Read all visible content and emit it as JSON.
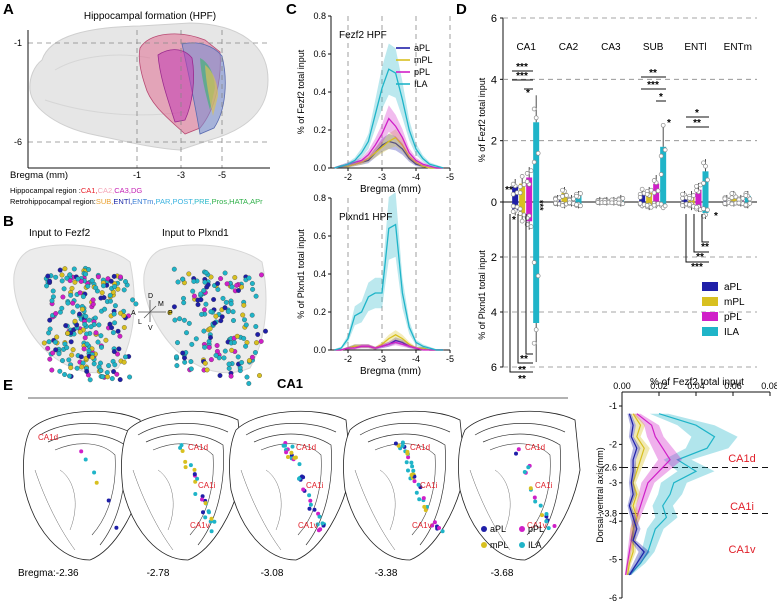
{
  "panels": {
    "A": {
      "letter": "A",
      "title": "Hippocampal formation (HPF)",
      "y_ticks": [
        "-1",
        "-6"
      ],
      "x_ticks": [
        "-1",
        "-3",
        "-5"
      ],
      "x_label": "Bregma (mm)",
      "hippocampal_label": "Hippocampal region :",
      "hippocampal_regions": [
        {
          "name": "CA1",
          "color": "#e8202a"
        },
        {
          "name": "CA2",
          "color": "#f4a6b8"
        },
        {
          "name": "CA3",
          "color": "#c41fb4"
        },
        {
          "name": "DG",
          "color": "#c41fb4"
        }
      ],
      "retro_label": "Retrohippocampal region:",
      "retro_regions": [
        {
          "name": "SUB",
          "color": "#e8a030"
        },
        {
          "name": "ENTl",
          "color": "#1d2aa8"
        },
        {
          "name": "ENTm",
          "color": "#3b7fd6"
        },
        {
          "name": "PAR",
          "color": "#3bb3e0"
        },
        {
          "name": "POST",
          "color": "#3bb3e0"
        },
        {
          "name": "PRE",
          "color": "#2ab8c8"
        },
        {
          "name": "Pros",
          "color": "#30b04a"
        },
        {
          "name": "HATA",
          "color": "#30b04a"
        },
        {
          "name": "APr",
          "color": "#30b04a"
        }
      ]
    },
    "B": {
      "letter": "B",
      "left_title": "Input to Fezf2",
      "right_title": "Input to Plxnd1",
      "orientation": {
        "d": "D",
        "v": "V",
        "a": "A",
        "p": "P",
        "m": "M",
        "l": "L"
      }
    },
    "C": {
      "letter": "C",
      "top_title": "Fezf2 HPF",
      "bottom_title": "Plxnd1 HPF",
      "top_ylabel": "% of Fezf2 total input",
      "bottom_ylabel": "% of Plxnd1 total input",
      "xlabel": "Bregma (mm)"
    },
    "D": {
      "letter": "D",
      "ylabel_top": "% of Fezf2 total input",
      "ylabel_bottom": "% of Plxnd1 total input",
      "stars": {
        "s3": "***",
        "s2": "**",
        "s1": "*"
      }
    },
    "E": {
      "letter": "E",
      "title": "CA1",
      "bregma_label": "Bregma:-2.36",
      "sections": [
        "-2.78",
        "-3.08",
        "-3.38",
        "-3.68"
      ],
      "region_labels": {
        "d": "CA1d",
        "i": "CA1i",
        "v": "CA1v"
      },
      "legend": {
        "apl": "aPL",
        "ppl": "pPL",
        "mpl": "mPL",
        "ila": "ILA"
      },
      "profile_xlabel": "% of Fezf2 total input",
      "profile_ylabel": "Dorsal-ventral axis(mm)",
      "profile_zones": [
        "CA1d",
        "CA1i",
        "CA1v"
      ]
    }
  },
  "colors": {
    "aPL": "#1f1fa8",
    "mPL": "#d8c020",
    "pPL": "#d01fc8",
    "ILA": "#1fb4c8"
  },
  "chart_data": [
    {
      "type": "line",
      "title": "Fezf2 HPF",
      "xlabel": "Bregma (mm)",
      "ylabel": "% of Fezf2 total input",
      "xlim": [
        -1.5,
        -5
      ],
      "ylim": [
        0,
        0.8
      ],
      "x_ticks": [
        -2,
        -3,
        -4,
        -5
      ],
      "y_ticks": [
        0,
        0.2,
        0.4,
        0.6,
        0.8
      ],
      "y_tick_labels": [
        "0.0",
        "0.2",
        "0.4",
        "0.6",
        "0.8"
      ],
      "x": [
        -1.6,
        -1.8,
        -2.0,
        -2.2,
        -2.4,
        -2.6,
        -2.8,
        -3.0,
        -3.2,
        -3.4,
        -3.6,
        -3.8,
        -4.0,
        -4.2,
        -4.4,
        -4.6,
        -4.8
      ],
      "series": [
        {
          "name": "aPL",
          "values": [
            0,
            0.01,
            0.01,
            0.02,
            0.03,
            0.04,
            0.08,
            0.12,
            0.14,
            0.13,
            0.1,
            0.05,
            0.02,
            0.01,
            0,
            0,
            0
          ]
        },
        {
          "name": "mPL",
          "values": [
            0,
            0.01,
            0.01,
            0.02,
            0.03,
            0.05,
            0.08,
            0.11,
            0.14,
            0.16,
            0.12,
            0.06,
            0.03,
            0.01,
            0,
            0,
            0
          ]
        },
        {
          "name": "pPL",
          "values": [
            0,
            0.01,
            0.02,
            0.03,
            0.04,
            0.07,
            0.12,
            0.18,
            0.26,
            0.22,
            0.16,
            0.08,
            0.04,
            0.02,
            0.01,
            0,
            0
          ]
        },
        {
          "name": "ILA",
          "values": [
            0,
            0.01,
            0.02,
            0.04,
            0.08,
            0.14,
            0.28,
            0.42,
            0.52,
            0.5,
            0.36,
            0.2,
            0.1,
            0.05,
            0.02,
            0.01,
            0
          ]
        }
      ],
      "legend": "top-right"
    },
    {
      "type": "line",
      "title": "Plxnd1 HPF",
      "xlabel": "Bregma (mm)",
      "ylabel": "% of Plxnd1 total input",
      "xlim": [
        -1.5,
        -5
      ],
      "ylim": [
        0,
        0.8
      ],
      "x_ticks": [
        -2,
        -3,
        -4,
        -5
      ],
      "y_ticks": [
        0,
        0.2,
        0.4,
        0.6,
        0.8
      ],
      "y_tick_labels": [
        "0.0",
        "0.2",
        "0.4",
        "0.6",
        "0.8"
      ],
      "x": [
        -1.6,
        -1.8,
        -2.0,
        -2.2,
        -2.4,
        -2.6,
        -2.8,
        -3.0,
        -3.2,
        -3.4,
        -3.6,
        -3.8,
        -4.0,
        -4.2,
        -4.4,
        -4.6,
        -4.8
      ],
      "series": [
        {
          "name": "aPL",
          "values": [
            0,
            0,
            0.01,
            0.02,
            0.02,
            0.02,
            0.01,
            0.02,
            0.03,
            0.05,
            0.04,
            0.02,
            0.01,
            0.01,
            0,
            0,
            0
          ]
        },
        {
          "name": "mPL",
          "values": [
            0,
            0,
            0.01,
            0.02,
            0.02,
            0.02,
            0.01,
            0.03,
            0.06,
            0.08,
            0.06,
            0.03,
            0.01,
            0.01,
            0,
            0,
            0
          ]
        },
        {
          "name": "pPL",
          "values": [
            0,
            0,
            0.01,
            0.01,
            0.02,
            0.02,
            0.01,
            0.02,
            0.03,
            0.04,
            0.03,
            0.02,
            0.01,
            0,
            0,
            0,
            0
          ]
        },
        {
          "name": "ILA",
          "values": [
            0,
            0.01,
            0.06,
            0.18,
            0.2,
            0.28,
            0.3,
            0.3,
            0.64,
            0.66,
            0.3,
            0.12,
            0.04,
            0.02,
            0.01,
            0,
            0
          ]
        }
      ]
    },
    {
      "type": "bar",
      "title": "",
      "categories": [
        "CA1",
        "CA2",
        "CA3",
        "SUB",
        "ENTl",
        "ENTm"
      ],
      "ylim": [
        -6,
        6
      ],
      "y_ticks": [
        -6,
        -4,
        -2,
        0,
        2,
        4,
        6
      ],
      "y_tick_labels": [
        "6",
        "4",
        "2",
        "0",
        "2",
        "4",
        "6"
      ],
      "series": [
        {
          "name": "aPL",
          "fezf2": [
            0.5,
            0.1,
            0.05,
            0.3,
            0.2,
            0.1
          ],
          "plxnd1": [
            0.3,
            0.05,
            0.02,
            0.1,
            0.1,
            0.05
          ]
        },
        {
          "name": "mPL",
          "fezf2": [
            0.6,
            0.3,
            0.05,
            0.3,
            0.2,
            0.2
          ],
          "plxnd1": [
            0.5,
            0.1,
            0.02,
            0.15,
            0.15,
            0.05
          ]
        },
        {
          "name": "pPL",
          "fezf2": [
            0.8,
            0.1,
            0.05,
            0.6,
            0.4,
            0.1
          ],
          "plxnd1": [
            0.7,
            0.05,
            0.02,
            0.1,
            0.2,
            0.05
          ]
        },
        {
          "name": "ILA",
          "fezf2": [
            2.6,
            0.2,
            0.1,
            1.8,
            1.0,
            0.2
          ],
          "plxnd1": [
            4.4,
            0.1,
            0.05,
            0.15,
            0.4,
            0.1
          ]
        }
      ],
      "legend": "bottom-right"
    },
    {
      "type": "line",
      "title": "",
      "xlabel": "% of Fezf2 total input",
      "ylabel": "Dorsal-ventral axis(mm)",
      "xlim": [
        0,
        0.08
      ],
      "x_ticks": [
        0,
        0.02,
        0.04,
        0.06,
        0.08
      ],
      "x_tick_labels": [
        "0.00",
        "0.02",
        "0.04",
        "0.06",
        "0.08"
      ],
      "ylim": [
        -1,
        -6
      ],
      "y_ticks": [
        -1,
        -2,
        -2.6,
        -3,
        -3.8,
        -4,
        -5,
        -6
      ],
      "y_tick_labels": [
        "-1",
        "-2",
        "-2.6",
        "-3",
        "-3.8",
        "-4",
        "-5",
        "-6"
      ],
      "boundaries": [
        -2.6,
        -3.8
      ],
      "y": [
        -1.2,
        -1.5,
        -1.8,
        -2.1,
        -2.4,
        -2.7,
        -3.0,
        -3.3,
        -3.6,
        -3.9,
        -4.2,
        -4.5,
        -4.8,
        -5.1,
        -5.4
      ],
      "series": [
        {
          "name": "aPL",
          "values": [
            0.004,
            0.006,
            0.005,
            0.008,
            0.006,
            0.006,
            0.005,
            0.006,
            0.004,
            0.006,
            0.008,
            0.006,
            0.012,
            0.008,
            0.004
          ]
        },
        {
          "name": "mPL",
          "values": [
            0.006,
            0.01,
            0.008,
            0.012,
            0.01,
            0.008,
            0.006,
            0.008,
            0.006,
            0.008,
            0.006,
            0.006,
            0.006,
            0.004,
            0.003
          ]
        },
        {
          "name": "pPL",
          "values": [
            0.008,
            0.016,
            0.018,
            0.022,
            0.026,
            0.02,
            0.014,
            0.012,
            0.01,
            0.008,
            0.006,
            0.005,
            0.004,
            0.003,
            0.002
          ]
        },
        {
          "name": "ILA",
          "values": [
            0.02,
            0.04,
            0.05,
            0.046,
            0.03,
            0.04,
            0.028,
            0.026,
            0.022,
            0.024,
            0.018,
            0.016,
            0.014,
            0.01,
            0.004
          ]
        }
      ]
    }
  ]
}
